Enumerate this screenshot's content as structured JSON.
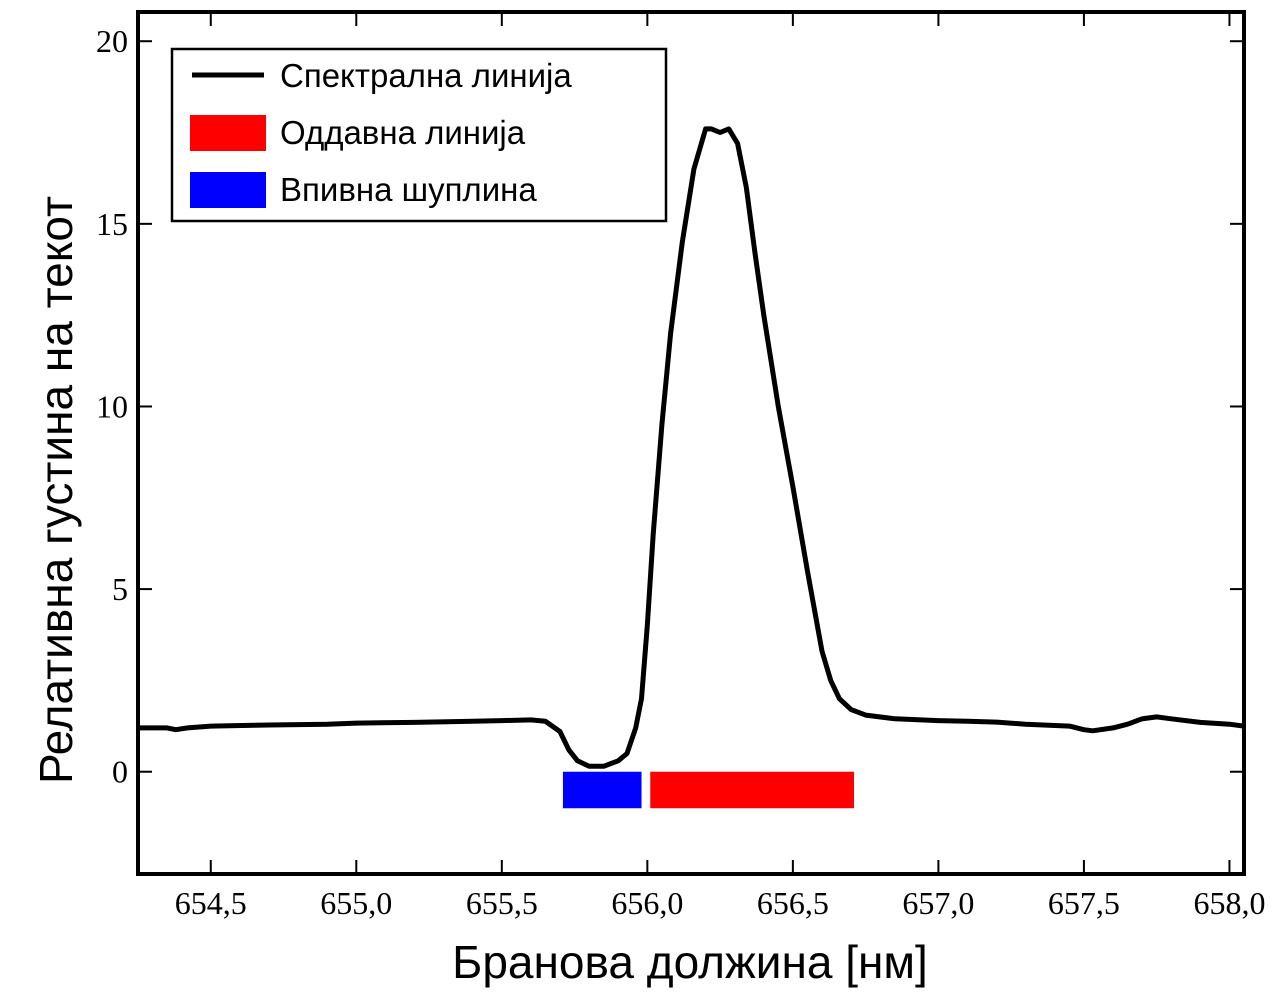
{
  "chart_data": {
    "type": "line",
    "xlabel": "Бранова должина [нм]",
    "ylabel": "Релативна густина на текот",
    "xlim": [
      654.25,
      658.05
    ],
    "ylim": [
      -2.8,
      20.8
    ],
    "x_ticks": [
      654.5,
      655.0,
      655.5,
      656.0,
      656.5,
      657.0,
      657.5,
      658.0
    ],
    "x_tick_labels": [
      "654,5",
      "655,0",
      "655,5",
      "656,0",
      "656,5",
      "657,0",
      "657,5",
      "658,0"
    ],
    "y_ticks": [
      0,
      5,
      10,
      15,
      20
    ],
    "y_tick_labels": [
      "0",
      "5",
      "10",
      "15",
      "20"
    ],
    "grid": false,
    "legend_position": "top-left",
    "series": [
      {
        "name": "Спектрална линија",
        "color": "#000000",
        "x": [
          654.25,
          654.35,
          654.38,
          654.42,
          654.5,
          654.7,
          654.9,
          655.0,
          655.2,
          655.4,
          655.5,
          655.6,
          655.65,
          655.7,
          655.73,
          655.76,
          655.8,
          655.85,
          655.9,
          655.93,
          655.96,
          655.98,
          656.0,
          656.02,
          656.05,
          656.08,
          656.12,
          656.16,
          656.2,
          656.22,
          656.25,
          656.28,
          656.31,
          656.34,
          656.37,
          656.4,
          656.45,
          656.5,
          656.55,
          656.6,
          656.63,
          656.66,
          656.7,
          656.75,
          656.85,
          657.0,
          657.1,
          657.2,
          657.3,
          657.45,
          657.5,
          657.53,
          657.6,
          657.65,
          657.7,
          657.75,
          657.8,
          657.9,
          658.0,
          658.05
        ],
        "y": [
          1.2,
          1.2,
          1.15,
          1.2,
          1.25,
          1.28,
          1.3,
          1.33,
          1.35,
          1.38,
          1.4,
          1.42,
          1.38,
          1.1,
          0.6,
          0.3,
          0.15,
          0.15,
          0.3,
          0.5,
          1.2,
          2.0,
          4.0,
          6.5,
          9.5,
          12.0,
          14.5,
          16.5,
          17.6,
          17.6,
          17.5,
          17.6,
          17.2,
          16.0,
          14.2,
          12.5,
          10.0,
          7.8,
          5.5,
          3.3,
          2.5,
          2.0,
          1.7,
          1.55,
          1.45,
          1.4,
          1.38,
          1.36,
          1.3,
          1.25,
          1.15,
          1.12,
          1.2,
          1.3,
          1.45,
          1.5,
          1.45,
          1.35,
          1.3,
          1.25
        ]
      }
    ],
    "bars": [
      {
        "name": "Оддавна линија",
        "color": "#ff0000",
        "x_start": 656.01,
        "x_end": 656.71,
        "y_top": 0,
        "y_bottom": -1.0
      },
      {
        "name": "Впивна шуплина",
        "color": "#0000ff",
        "x_start": 655.71,
        "x_end": 655.98,
        "y_top": 0,
        "y_bottom": -1.0
      }
    ],
    "legend": [
      {
        "label": "Спектрална линија",
        "kind": "line",
        "color": "#000000"
      },
      {
        "label": "Оддавна линија",
        "kind": "patch",
        "color": "#ff0000"
      },
      {
        "label": "Впивна шуплина",
        "kind": "patch",
        "color": "#0000ff"
      }
    ]
  }
}
